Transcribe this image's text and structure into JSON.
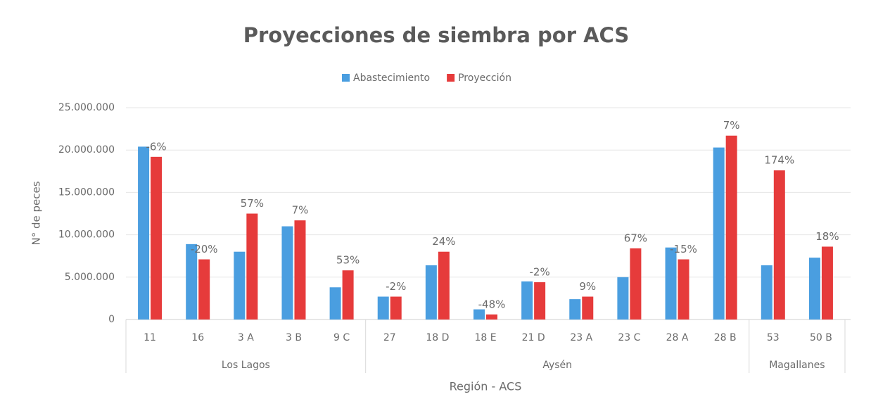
{
  "chart_data": {
    "type": "bar",
    "title": "Proyecciones de siembra por ACS",
    "x_label": "Región - ACS",
    "y_label": "N° de peces",
    "categories": [
      "11",
      "16",
      "3 A",
      "3 B",
      "9 C",
      "27",
      "18 D",
      "18 E",
      "21 D",
      "23 A",
      "23 C",
      "28 A",
      "28 B",
      "53",
      "50 B"
    ],
    "groups": [
      {
        "name": "Los Lagos",
        "span": 5
      },
      {
        "name": "Aysén",
        "span": 8
      },
      {
        "name": "Magallanes",
        "span": 2
      }
    ],
    "series": [
      {
        "name": "Abastecimiento",
        "color": "#4a9ee0",
        "values": [
          20400000,
          8900000,
          8000000,
          11000000,
          3800000,
          2700000,
          6400000,
          1200000,
          4500000,
          2400000,
          5000000,
          8500000,
          20300000,
          6400000,
          7300000
        ]
      },
      {
        "name": "Proyección",
        "color": "#e63b3b",
        "values": [
          19200000,
          7100000,
          12500000,
          11700000,
          5800000,
          2700000,
          8000000,
          600000,
          4400000,
          2700000,
          8400000,
          7100000,
          21700000,
          17600000,
          8600000
        ],
        "change_labels": [
          "-6%",
          "-20%",
          "57%",
          "7%",
          "53%",
          "-2%",
          "24%",
          "-48%",
          "-2%",
          "9%",
          "67%",
          "-15%",
          "7%",
          "174%",
          "18%"
        ]
      }
    ],
    "ylim": [
      0,
      25000000
    ],
    "yticks": [
      0,
      {
        "value": 5000000,
        "label": "5.000.000"
      },
      {
        "value": 10000000,
        "label": "10.000.000"
      },
      {
        "value": 15000000,
        "label": "15.000.000"
      },
      {
        "value": 20000000,
        "label": "20.000.000"
      },
      {
        "value": 25000000,
        "label": "25.000.000"
      }
    ],
    "grid": true,
    "legend": "top"
  }
}
